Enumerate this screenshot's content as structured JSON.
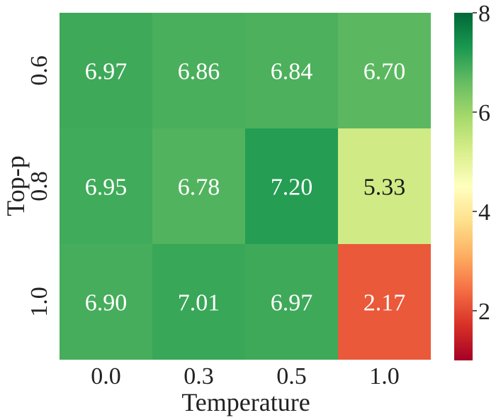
{
  "chart_data": {
    "type": "heatmap",
    "xlabel": "Temperature",
    "ylabel": "Top-p",
    "x_categories": [
      "0.0",
      "0.3",
      "0.5",
      "1.0"
    ],
    "y_categories": [
      "0.6",
      "0.8",
      "1.0"
    ],
    "values": [
      [
        6.97,
        6.86,
        6.84,
        6.7
      ],
      [
        6.95,
        6.78,
        7.2,
        5.33
      ],
      [
        6.9,
        7.01,
        6.97,
        2.17
      ]
    ],
    "value_labels": [
      [
        "6.97",
        "6.86",
        "6.84",
        "6.70"
      ],
      [
        "6.95",
        "6.78",
        "7.20",
        "5.33"
      ],
      [
        "6.90",
        "7.01",
        "6.97",
        "2.17"
      ]
    ],
    "colorbar": {
      "vmin": 1,
      "vmax": 8,
      "ticks": [
        "2",
        "4",
        "6",
        "8"
      ],
      "colormap": "RdYlGn"
    }
  }
}
